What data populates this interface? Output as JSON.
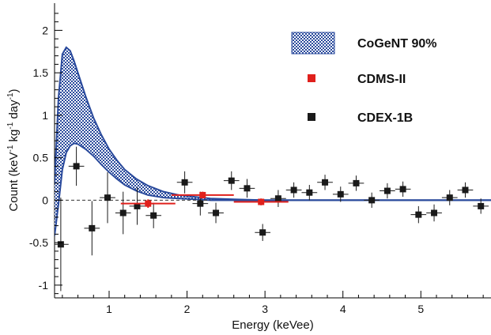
{
  "chart_data": {
    "type": "scatter",
    "xlabel": "Energy (keVee)",
    "ylabel": "Count (keV",
    "ylabel_parts": [
      "Count (keV",
      "-1",
      " kg",
      "-1",
      " day",
      "-1",
      ")"
    ],
    "xlim": [
      0.3,
      5.9
    ],
    "ylim": [
      -1.15,
      2.32
    ],
    "x_ticks": [
      1,
      2,
      3,
      4,
      5
    ],
    "x_tick_labels": [
      "1",
      "2",
      "3",
      "4",
      "5"
    ],
    "y_ticks": [
      -1,
      -0.5,
      0,
      0.5,
      1,
      1.5,
      2
    ],
    "y_tick_labels": [
      "-1",
      "-0.5",
      "0",
      "0.5",
      "1",
      "1.5",
      "2"
    ],
    "grid": false,
    "legend_position": "top-right",
    "colors": {
      "band": "#2a4a9c",
      "band_fill": "#d8e0f4",
      "cdms": "#e0201c",
      "cdex": "#1a1a1a",
      "baseline": "#2a4a9c"
    },
    "band": {
      "name": "CoGeNT 90%",
      "x": [
        0.3,
        0.35,
        0.4,
        0.45,
        0.5,
        0.55,
        0.6,
        0.7,
        0.8,
        0.9,
        1.0,
        1.1,
        1.2,
        1.35,
        1.5,
        1.7,
        1.9,
        2.1,
        2.3,
        2.6,
        3.0,
        3.4,
        4.0,
        5.0,
        5.9
      ],
      "upper": [
        0.2,
        1.2,
        1.72,
        1.8,
        1.76,
        1.64,
        1.5,
        1.22,
        0.97,
        0.77,
        0.6,
        0.47,
        0.36,
        0.25,
        0.17,
        0.1,
        0.06,
        0.04,
        0.02,
        0.01,
        0.0,
        0.0,
        0.0,
        0.0,
        0.0
      ],
      "lower": [
        -0.42,
        -0.05,
        0.36,
        0.56,
        0.64,
        0.67,
        0.66,
        0.6,
        0.52,
        0.42,
        0.33,
        0.25,
        0.18,
        0.11,
        0.06,
        0.03,
        0.02,
        0.01,
        0.0,
        0.0,
        0.0,
        0.0,
        0.0,
        0.0,
        0.0
      ]
    },
    "series": [
      {
        "name": "CDMS-II",
        "x": [
          1.5,
          2.2,
          2.95
        ],
        "y": [
          -0.04,
          0.06,
          -0.02
        ],
        "xerr": [
          0.35,
          0.4,
          0.35
        ],
        "yerr": [
          0.05,
          0.04,
          0.04
        ]
      },
      {
        "name": "CDEX-1B",
        "x": [
          0.38,
          0.58,
          0.78,
          0.98,
          1.18,
          1.36,
          1.57,
          1.97,
          2.17,
          2.37,
          2.57,
          2.77,
          2.97,
          3.17,
          3.37,
          3.57,
          3.77,
          3.97,
          4.17,
          4.37,
          4.57,
          4.77,
          4.97,
          5.17,
          5.37,
          5.57,
          5.77
        ],
        "y": [
          -0.52,
          0.4,
          -0.33,
          0.03,
          -0.15,
          -0.07,
          -0.18,
          0.21,
          -0.04,
          -0.15,
          0.23,
          0.14,
          -0.38,
          0.02,
          0.12,
          0.09,
          0.21,
          0.07,
          0.2,
          0.0,
          0.11,
          0.13,
          -0.17,
          -0.15,
          0.03,
          0.12,
          -0.07
        ],
        "yerr": [
          0.55,
          0.23,
          0.32,
          0.3,
          0.25,
          0.22,
          0.15,
          0.13,
          0.14,
          0.12,
          0.11,
          0.11,
          0.1,
          0.1,
          0.09,
          0.09,
          0.09,
          0.09,
          0.09,
          0.09,
          0.09,
          0.09,
          0.1,
          0.1,
          0.09,
          0.09,
          0.09
        ],
        "xerr": 0.1
      }
    ]
  }
}
